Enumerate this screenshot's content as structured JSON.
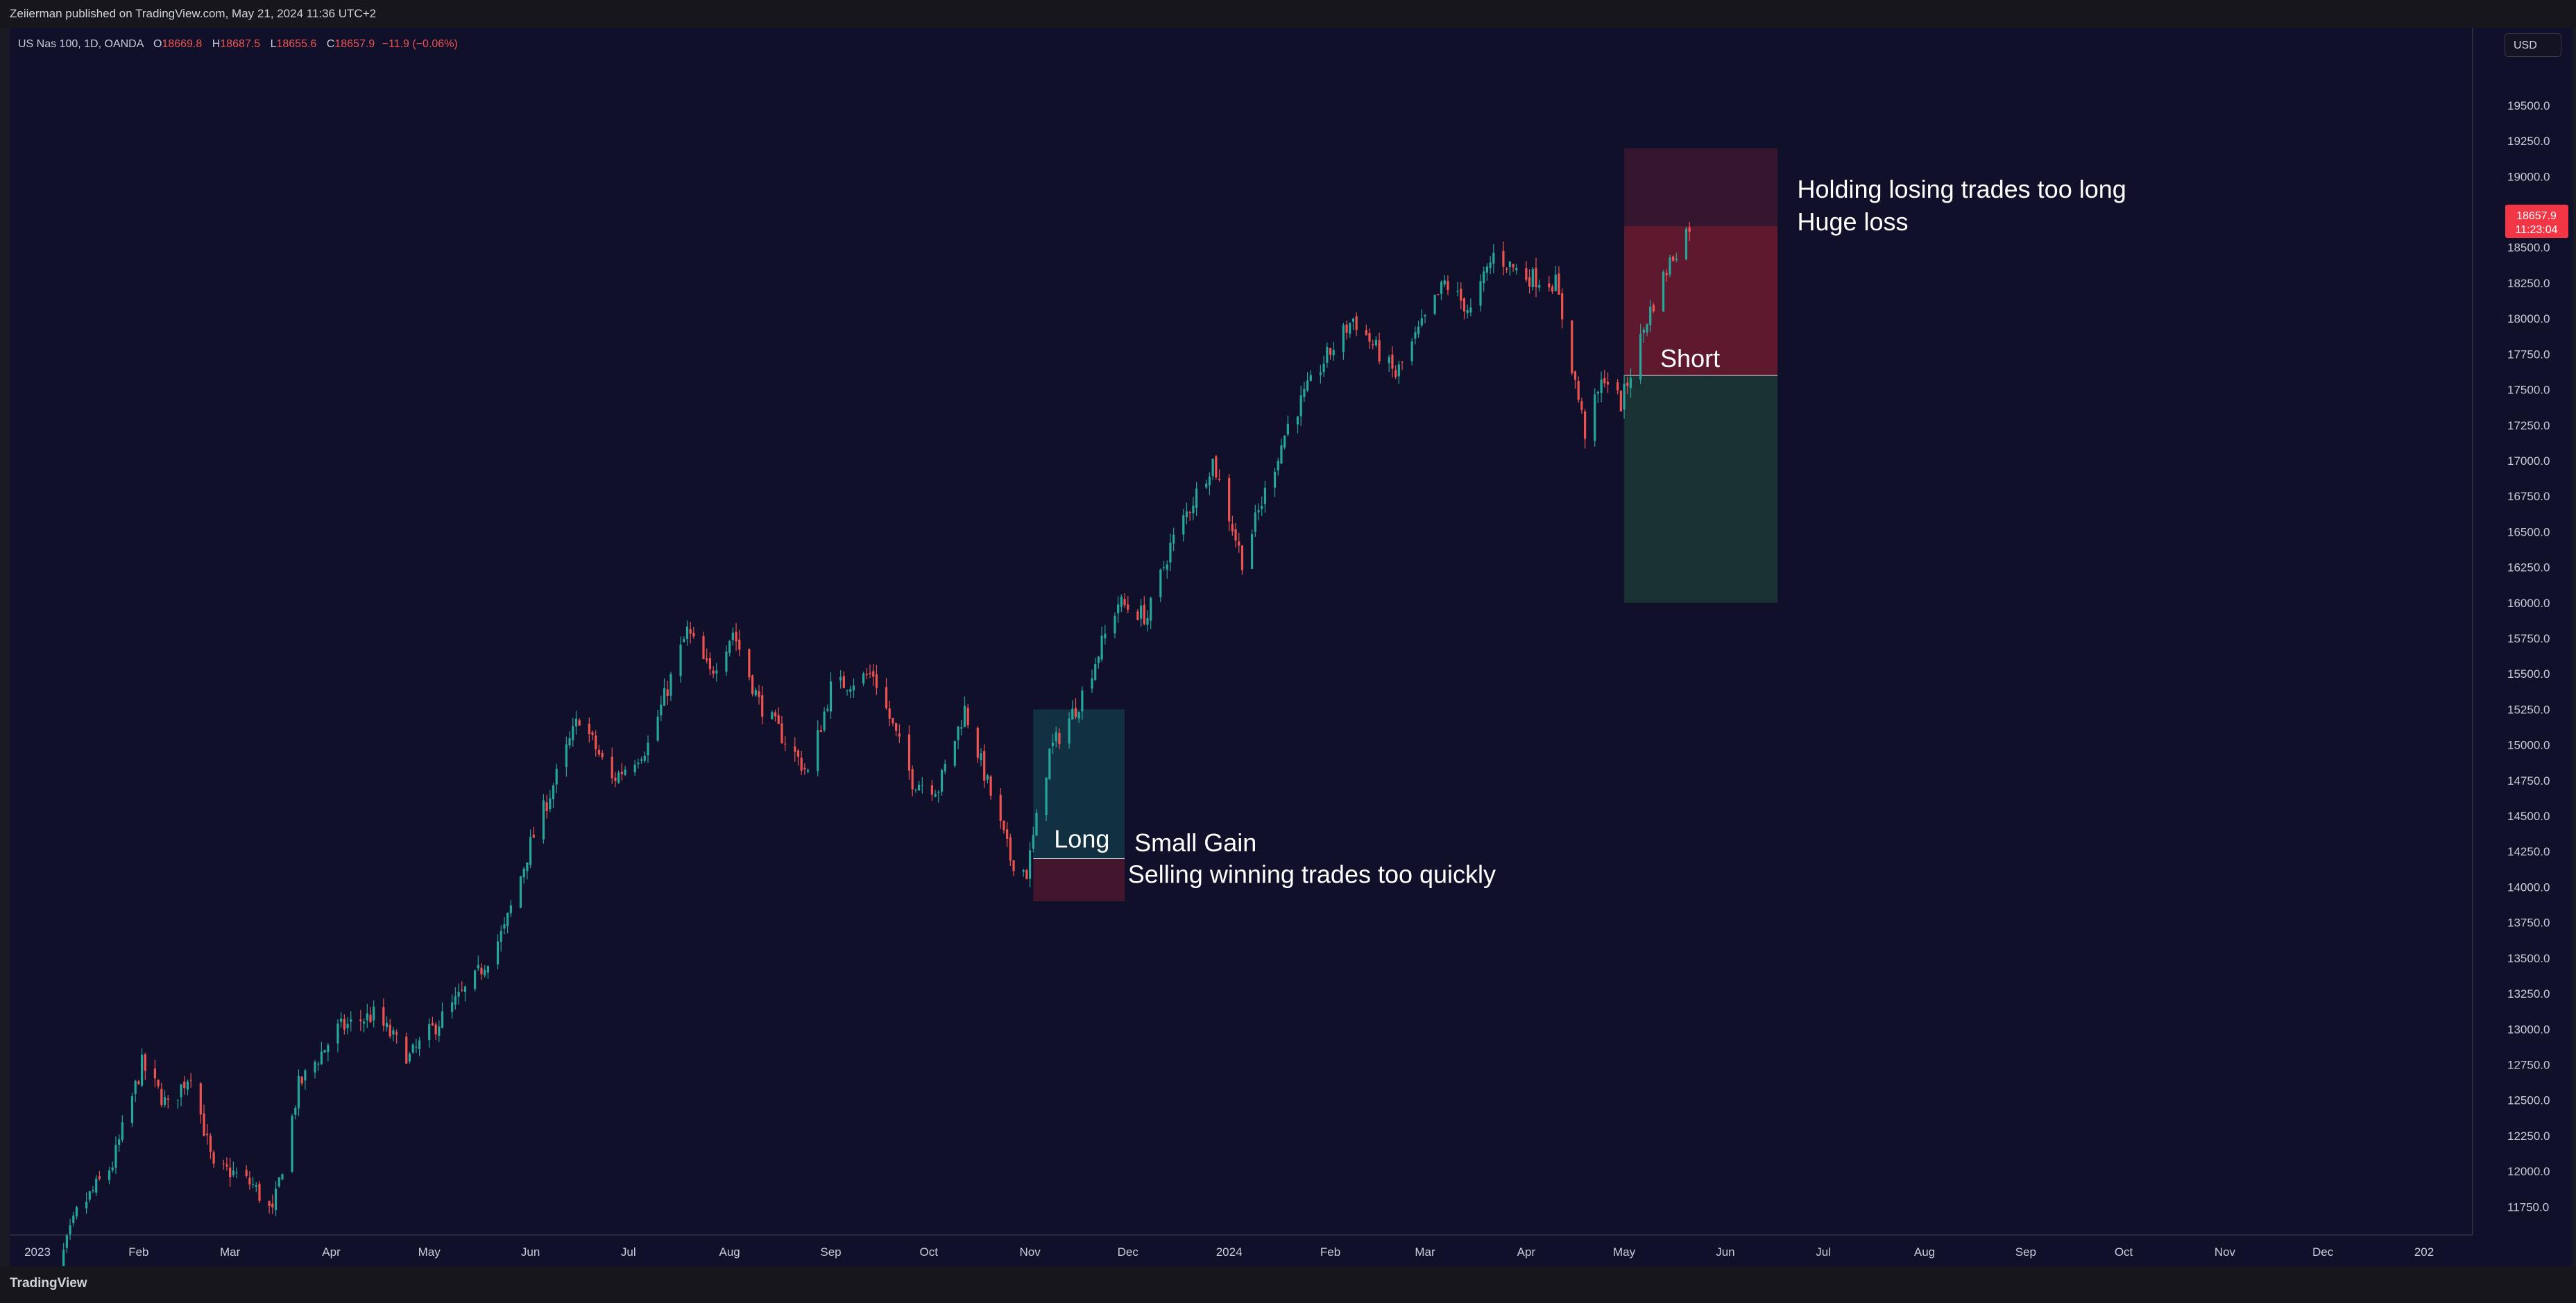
{
  "header": {
    "published": "Zeiierman published on TradingView.com, May 21, 2024 11:36 UTC+2"
  },
  "symbol": {
    "name": "US Nas 100, 1D, OANDA",
    "open_label": "O",
    "open": "18669.8",
    "high_label": "H",
    "high": "18687.5",
    "low_label": "L",
    "low": "18655.6",
    "close_label": "C",
    "close": "18657.9",
    "change": "−11.9 (−0.06%)"
  },
  "currency": "USD",
  "price_badge": {
    "price": "18657.9",
    "countdown": "11:23:04"
  },
  "footer": {
    "brand": "TradingView"
  },
  "colors": {
    "up": "#26a69a",
    "down": "#ef5350",
    "background": "#10102b",
    "badge": "#f23645"
  },
  "chart_data": {
    "type": "candlestick",
    "interval": "1D",
    "x_range": [
      "2023-01-01",
      "2025-01-01"
    ],
    "ylim": [
      11600,
      19900
    ],
    "y_ticks": [
      11750,
      12000,
      12250,
      12500,
      12750,
      13000,
      13250,
      13500,
      13750,
      14000,
      14250,
      14500,
      14750,
      15000,
      15250,
      15500,
      15750,
      16000,
      16250,
      16500,
      16750,
      17000,
      17250,
      17500,
      17750,
      18000,
      18250,
      18500,
      18750,
      19000,
      19250,
      19500
    ],
    "x_ticks": [
      {
        "date": "2023-01-01",
        "label": "2023"
      },
      {
        "date": "2023-02-01",
        "label": "Feb"
      },
      {
        "date": "2023-03-01",
        "label": "Mar"
      },
      {
        "date": "2023-04-01",
        "label": "Apr"
      },
      {
        "date": "2023-05-01",
        "label": "May"
      },
      {
        "date": "2023-06-01",
        "label": "Jun"
      },
      {
        "date": "2023-07-01",
        "label": "Jul"
      },
      {
        "date": "2023-08-01",
        "label": "Aug"
      },
      {
        "date": "2023-09-01",
        "label": "Sep"
      },
      {
        "date": "2023-10-01",
        "label": "Oct"
      },
      {
        "date": "2023-11-01",
        "label": "Nov"
      },
      {
        "date": "2023-12-01",
        "label": "Dec"
      },
      {
        "date": "2024-01-01",
        "label": "2024"
      },
      {
        "date": "2024-02-01",
        "label": "Feb"
      },
      {
        "date": "2024-03-01",
        "label": "Mar"
      },
      {
        "date": "2024-04-01",
        "label": "Apr"
      },
      {
        "date": "2024-05-01",
        "label": "May"
      },
      {
        "date": "2024-06-01",
        "label": "Jun"
      },
      {
        "date": "2024-07-01",
        "label": "Jul"
      },
      {
        "date": "2024-08-01",
        "label": "Aug"
      },
      {
        "date": "2024-09-01",
        "label": "Sep"
      },
      {
        "date": "2024-10-01",
        "label": "Oct"
      },
      {
        "date": "2024-11-01",
        "label": "Nov"
      },
      {
        "date": "2024-12-01",
        "label": "Dec"
      },
      {
        "date": "2025-01-01",
        "label": "202"
      }
    ],
    "path_points": [
      [
        "2023-01-03",
        11000
      ],
      [
        "2023-01-13",
        11700
      ],
      [
        "2023-01-24",
        12050
      ],
      [
        "2023-02-02",
        12750
      ],
      [
        "2023-02-10",
        12450
      ],
      [
        "2023-02-17",
        12700
      ],
      [
        "2023-02-24",
        12000
      ],
      [
        "2023-03-01",
        12000
      ],
      [
        "2023-03-08",
        11900
      ],
      [
        "2023-03-14",
        11700
      ],
      [
        "2023-03-22",
        12600
      ],
      [
        "2023-04-03",
        13000
      ],
      [
        "2023-04-14",
        13100
      ],
      [
        "2023-04-25",
        12800
      ],
      [
        "2023-05-02",
        13000
      ],
      [
        "2023-05-15",
        13350
      ],
      [
        "2023-05-24",
        13700
      ],
      [
        "2023-06-01",
        14300
      ],
      [
        "2023-06-16",
        15200
      ],
      [
        "2023-06-26",
        14750
      ],
      [
        "2023-07-07",
        15000
      ],
      [
        "2023-07-19",
        15800
      ],
      [
        "2023-07-26",
        15500
      ],
      [
        "2023-08-02",
        15800
      ],
      [
        "2023-08-10",
        15300
      ],
      [
        "2023-08-25",
        14800
      ],
      [
        "2023-09-01",
        15400
      ],
      [
        "2023-09-14",
        15500
      ],
      [
        "2023-09-26",
        14750
      ],
      [
        "2023-10-04",
        14700
      ],
      [
        "2023-10-12",
        15250
      ],
      [
        "2023-10-26",
        14200
      ],
      [
        "2023-10-31",
        14100
      ],
      [
        "2023-11-07",
        14950
      ],
      [
        "2023-11-16",
        15300
      ],
      [
        "2023-11-28",
        16000
      ],
      [
        "2023-12-07",
        15900
      ],
      [
        "2023-12-14",
        16400
      ],
      [
        "2023-12-27",
        17000
      ],
      [
        "2024-01-05",
        16300
      ],
      [
        "2024-01-19",
        17250
      ],
      [
        "2024-01-30",
        17700
      ],
      [
        "2024-02-08",
        18000
      ],
      [
        "2024-02-21",
        17600
      ],
      [
        "2024-03-07",
        18250
      ],
      [
        "2024-03-15",
        18050
      ],
      [
        "2024-03-22",
        18450
      ],
      [
        "2024-04-01",
        18300
      ],
      [
        "2024-04-10",
        18250
      ],
      [
        "2024-04-19",
        17200
      ],
      [
        "2024-04-25",
        17600
      ],
      [
        "2024-04-30",
        17400
      ],
      [
        "2024-05-08",
        18000
      ],
      [
        "2024-05-15",
        18400
      ],
      [
        "2024-05-21",
        18657.9
      ]
    ],
    "annotations": [
      {
        "type": "long-position",
        "text": "Long",
        "entry": 14200,
        "target": 15250,
        "stop": 13900,
        "start": "2023-11-02",
        "end": "2023-11-30"
      },
      {
        "type": "short-position",
        "text": "Short",
        "entry": 17600,
        "stop": 19200,
        "target": 16000,
        "start": "2024-05-01",
        "end": "2024-06-17"
      }
    ],
    "notes": [
      {
        "text": "Small Gain",
        "date": "2023-12-03",
        "price": 14250
      },
      {
        "text": "Selling winning trades too quickly",
        "date": "2023-12-01",
        "price": 14030
      },
      {
        "text": "Holding losing trades too long",
        "date": "2024-06-23",
        "price": 18850
      },
      {
        "text": "Huge loss",
        "date": "2024-06-23",
        "price": 18620
      }
    ]
  }
}
